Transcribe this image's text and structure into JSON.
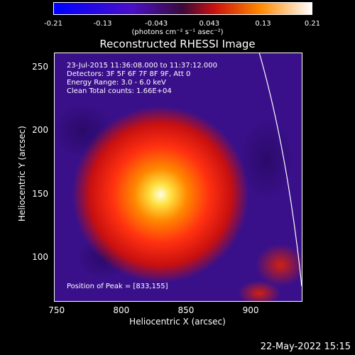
{
  "colorbar": {
    "tick_labels": [
      "-0.21",
      "-0.13",
      "-0.043",
      "0.043",
      "0.13",
      "0.21"
    ],
    "tick_values": [
      -0.21,
      -0.13,
      -0.043,
      0.043,
      0.13,
      0.21
    ],
    "range": [
      -0.21,
      0.21
    ],
    "units_label": "(photons cm⁻² s⁻¹ asec⁻²)"
  },
  "chart_data": {
    "type": "heatmap",
    "title": "Reconstructed RHESSI Image",
    "xlabel": "Heliocentric X (arcsec)",
    "ylabel": "Heliocentric Y (arcsec)",
    "xlim": [
      748,
      940
    ],
    "ylim": [
      65,
      261
    ],
    "x_ticks": [
      750,
      800,
      850,
      900
    ],
    "y_ticks": [
      100,
      150,
      200,
      250
    ],
    "peak": {
      "x": 833,
      "y": 155
    },
    "colors": {
      "background": "#000000",
      "low": "#3a108a",
      "high": "#ffffd0"
    }
  },
  "info": {
    "line1": "23-Jul-2015 11:36:08.000 to 11:37:12.000",
    "line2": "Detectors: 3F 5F 6F 7F 8F 9F, Att 0",
    "line3": "Energy Range: 3.0 - 6.0 keV",
    "line4": "Clean     Total counts: 1.66E+04",
    "peak_text": "Position of Peak = [833,155]"
  },
  "footer": {
    "date": "22-May-2022 15:15"
  }
}
